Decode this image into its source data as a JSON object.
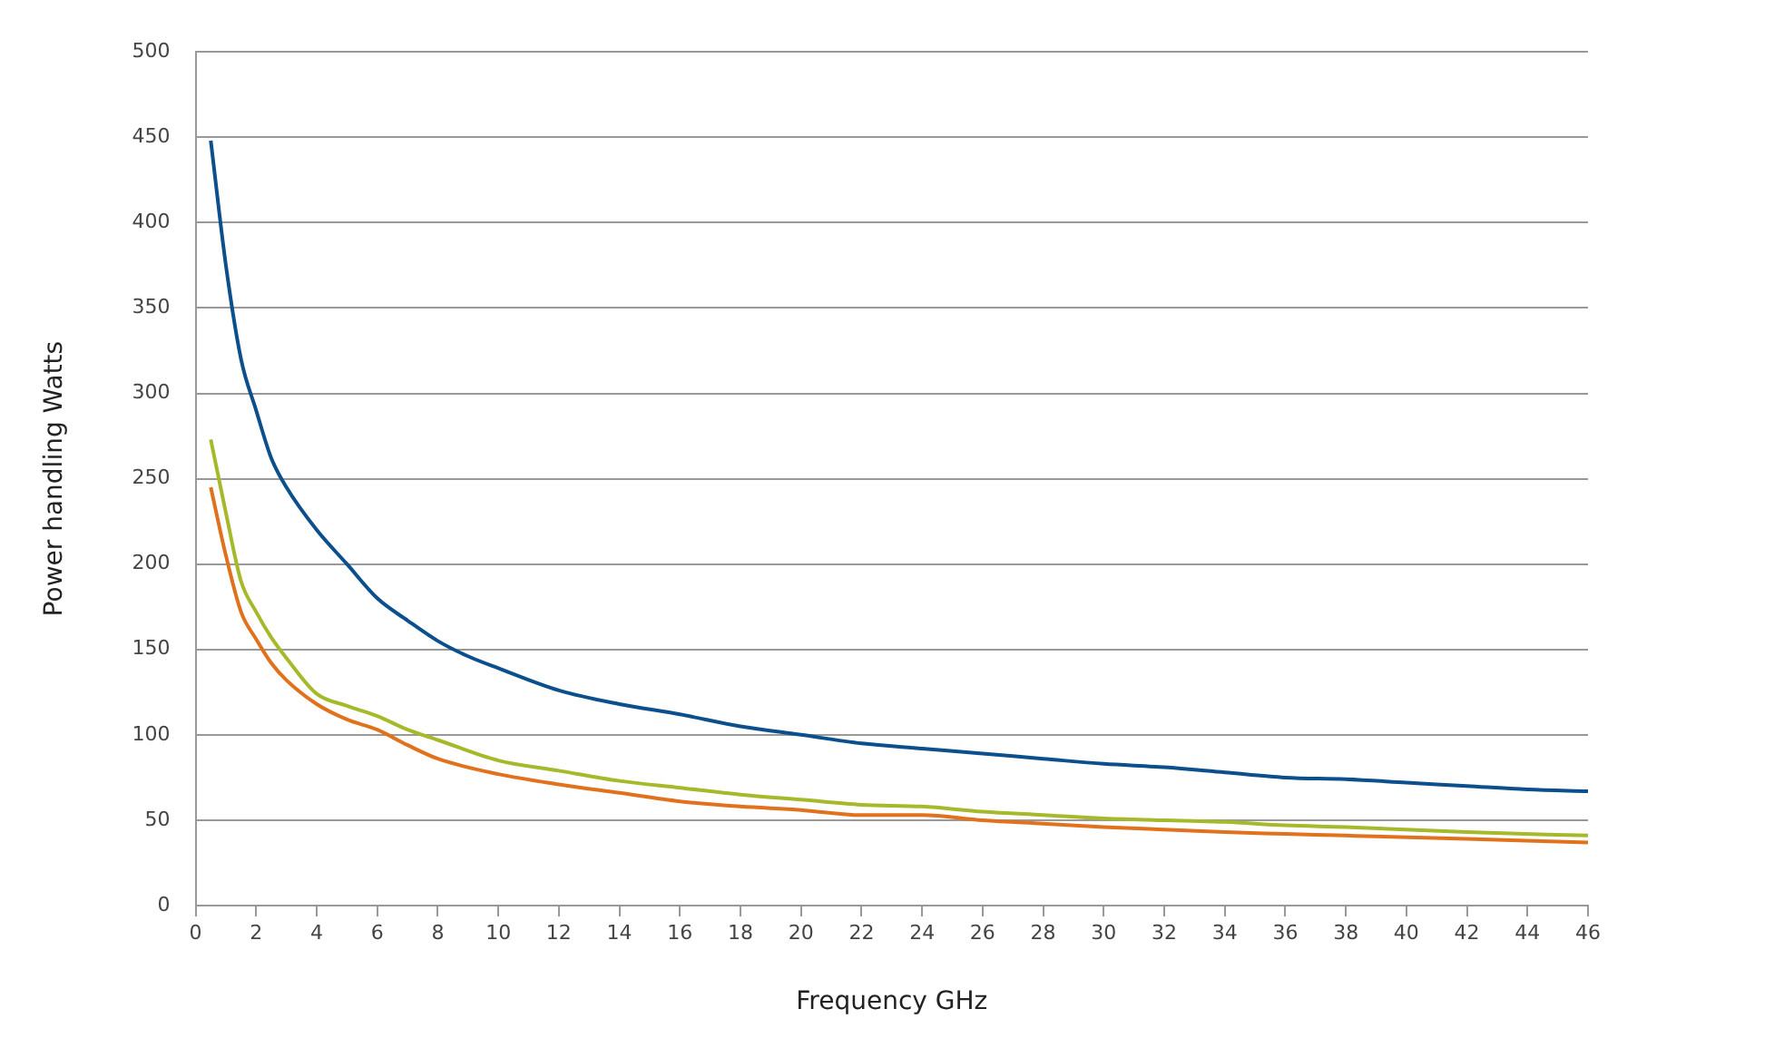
{
  "chart_data": {
    "type": "line",
    "xlabel": "Frequency GHz",
    "ylabel": "Power handling Watts",
    "xlim": [
      0,
      46
    ],
    "xticks": [
      0,
      2,
      4,
      6,
      8,
      10,
      12,
      14,
      16,
      18,
      20,
      22,
      24,
      26,
      28,
      30,
      32,
      34,
      36,
      38,
      40,
      42,
      44,
      46
    ],
    "ylim": [
      0,
      500
    ],
    "yticks": [
      0,
      50,
      100,
      150,
      200,
      250,
      300,
      350,
      400,
      450,
      500
    ],
    "grid": "y",
    "marker": "none",
    "line_style": "solid",
    "series": [
      {
        "color": "#0b4f8c",
        "x": [
          0.5,
          1,
          1.5,
          2,
          2.5,
          3,
          4,
          5,
          6,
          7,
          8,
          9,
          10,
          12,
          14,
          16,
          18,
          20,
          22,
          24,
          26,
          28,
          30,
          32,
          34,
          36,
          38,
          40,
          42,
          44,
          46
        ],
        "values": [
          448,
          375,
          320,
          290,
          262,
          245,
          220,
          200,
          180,
          167,
          155,
          146,
          139,
          126,
          118,
          112,
          105,
          100,
          95,
          92,
          89,
          86,
          83,
          81,
          78,
          75,
          74,
          72,
          70,
          68,
          67
        ]
      },
      {
        "color": "#a6b92a",
        "x": [
          0.5,
          1,
          1.5,
          2,
          2.5,
          3,
          4,
          5,
          6,
          7,
          8,
          10,
          12,
          14,
          16,
          18,
          20,
          22,
          24,
          26,
          28,
          30,
          34,
          36,
          38,
          42,
          46
        ],
        "values": [
          273,
          230,
          190,
          172,
          157,
          145,
          124,
          117,
          111,
          103,
          97,
          85,
          79,
          73,
          69,
          65,
          62,
          59,
          58,
          55,
          53,
          51,
          49,
          47,
          46,
          43,
          41
        ]
      },
      {
        "color": "#e2711d",
        "x": [
          0.5,
          1,
          1.5,
          2,
          2.5,
          3,
          4,
          5,
          6,
          7,
          8,
          10,
          12,
          14,
          16,
          18,
          20,
          22,
          24,
          26,
          28,
          30,
          34,
          36,
          38,
          42,
          46
        ],
        "values": [
          245,
          205,
          172,
          156,
          142,
          132,
          118,
          109,
          103,
          94,
          86,
          77,
          71,
          66,
          61,
          58,
          56,
          53,
          53,
          50,
          48,
          46,
          43,
          42,
          41,
          39,
          37
        ]
      }
    ]
  }
}
